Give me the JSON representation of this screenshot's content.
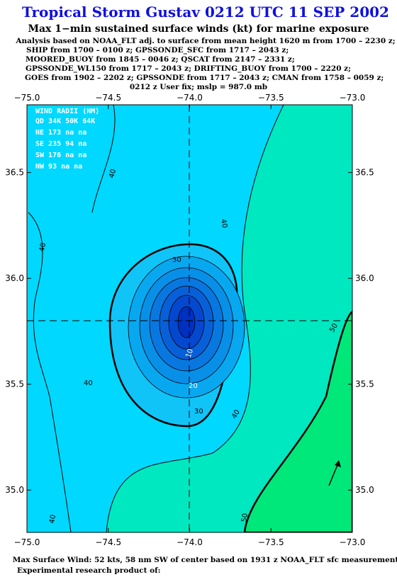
{
  "header": {
    "title": "Tropical Storm Gustav 0212 UTC 11 SEP 2002",
    "subtitle": "Max 1−min sustained surface winds (kt) for marine exposure",
    "analysis": [
      "Analysis based on  NOAA_FLT adj. to surface from mean height 1620 m from 1700 – 2230 z;",
      "SHIP from 1700 – 0100 z;  GPSSONDE_SFC from 1717 – 2043 z;",
      "MOORED_BUOY from 1845 – 0046 z;  QSCAT from 2147 – 2331 z;",
      "GPSSONDE_WL150 from 1717 – 2043 z;  DRIFTING_BUOY from 1700 – 2220 z;",
      "GOES from 1902 – 2202 z;  GPSSONDE from 1717 – 2043 z;  CMAN from 1758 – 0059 z;",
      "0212 z User fix; mslp = 987.0 mb"
    ]
  },
  "map": {
    "xlim": [
      -75,
      -73
    ],
    "ylim": [
      34.8,
      36.82
    ],
    "xticks": [
      {
        "value": -75,
        "label": "−75.0"
      },
      {
        "value": -74.5,
        "label": "−74.5"
      },
      {
        "value": -74,
        "label": "−74.0"
      },
      {
        "value": -73.5,
        "label": "−73.5"
      },
      {
        "value": -73,
        "label": "−73.0"
      }
    ],
    "yticks": [
      {
        "value": 35,
        "label": "35.0"
      },
      {
        "value": 35.5,
        "label": "35.5"
      },
      {
        "value": 36,
        "label": "36.0"
      },
      {
        "value": 36.5,
        "label": "36.5"
      }
    ],
    "wind_radii": [
      "WIND RADII (NM)",
      "QD 34K 50K 64K",
      "NE 173  na   na",
      "SE 235  94   na",
      "SW 176  na   na",
      "NW  93  na   na"
    ],
    "contour_labels": [
      "40",
      "40",
      "30",
      "10",
      "20",
      "30",
      "40",
      "40",
      "40",
      "40",
      "50",
      "50"
    ]
  },
  "footer": {
    "max_wind": "Max Surface Wind: 52 kts, 58 nm SW of center based on 1931 z NOAA_FLT sfc measurement",
    "credit": "Experimental research product of:"
  }
}
